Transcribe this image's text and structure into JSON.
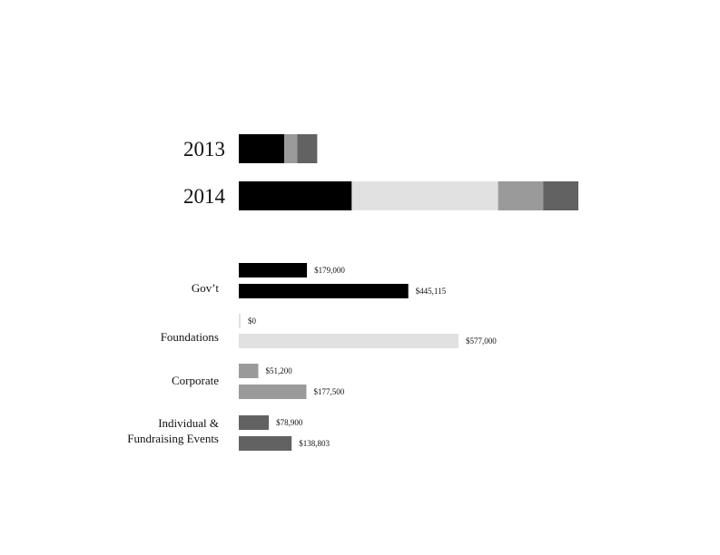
{
  "chart_data": [
    {
      "type": "bar",
      "stacked": true,
      "orientation": "horizontal",
      "categories": [
        "2013",
        "2014"
      ],
      "series": [
        {
          "name": "Gov’t",
          "color": "#000000",
          "values": [
            179000,
            445115
          ]
        },
        {
          "name": "Foundations",
          "color": "#e1e1e1",
          "values": [
            0,
            577000
          ]
        },
        {
          "name": "Corporate",
          "color": "#9a9a9b",
          "values": [
            51200,
            177500
          ]
        },
        {
          "name": "Individual & Fundraising Events",
          "color": "#626263",
          "values": [
            78900,
            138803
          ]
        }
      ]
    },
    {
      "type": "bar",
      "orientation": "horizontal",
      "groups": [
        {
          "label_lines": [
            "Gov’t"
          ],
          "color": "#000000",
          "values": [
            179000,
            445115
          ],
          "labels": [
            "$179,000",
            "$445,115"
          ]
        },
        {
          "label_lines": [
            "Foundations"
          ],
          "color": "#e1e1e1",
          "values": [
            0,
            577000
          ],
          "labels": [
            "$0",
            "$577,000"
          ]
        },
        {
          "label_lines": [
            "Corporate"
          ],
          "color": "#9a9a9b",
          "values": [
            51200,
            177500
          ],
          "labels": [
            "$51,200",
            "$177,500"
          ]
        },
        {
          "label_lines": [
            "Individual &",
            "Fundraising Events"
          ],
          "color": "#626263",
          "values": [
            78900,
            138803
          ],
          "labels": [
            "$78,900",
            "$138,803"
          ]
        }
      ]
    }
  ]
}
